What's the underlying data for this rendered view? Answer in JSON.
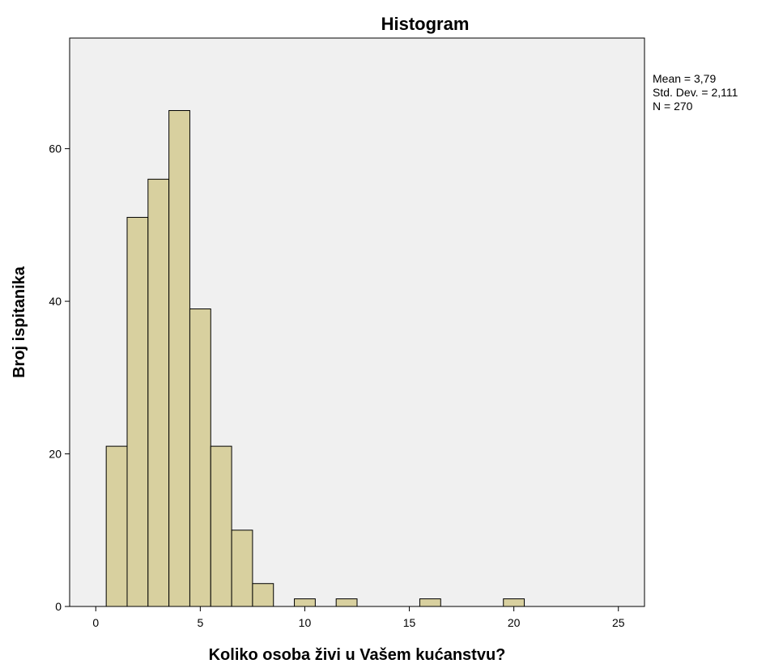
{
  "chart_data": {
    "type": "bar",
    "title": "Histogram",
    "xlabel": "Koliko osoba živi u Vašem kućanstvu?",
    "ylabel": "Broj ispitanika",
    "xlim": [
      -1.25,
      26.25
    ],
    "ylim": [
      0,
      74.5
    ],
    "x_ticks": [
      {
        "value": 0,
        "label": "0"
      },
      {
        "value": 5,
        "label": "5"
      },
      {
        "value": 10,
        "label": "10"
      },
      {
        "value": 15,
        "label": "15"
      },
      {
        "value": 20,
        "label": "20"
      },
      {
        "value": 25,
        "label": "25"
      }
    ],
    "y_ticks": [
      {
        "value": 0,
        "label": "0"
      },
      {
        "value": 20,
        "label": "20"
      },
      {
        "value": 40,
        "label": "40"
      },
      {
        "value": 60,
        "label": "60"
      }
    ],
    "bins": [
      {
        "x0": 0.5,
        "x1": 1.5,
        "count": 21
      },
      {
        "x0": 1.5,
        "x1": 2.5,
        "count": 51
      },
      {
        "x0": 2.5,
        "x1": 3.5,
        "count": 56
      },
      {
        "x0": 3.5,
        "x1": 4.5,
        "count": 65
      },
      {
        "x0": 4.5,
        "x1": 5.5,
        "count": 39
      },
      {
        "x0": 5.5,
        "x1": 6.5,
        "count": 21
      },
      {
        "x0": 6.5,
        "x1": 7.5,
        "count": 10
      },
      {
        "x0": 7.5,
        "x1": 8.5,
        "count": 3
      },
      {
        "x0": 9.5,
        "x1": 10.5,
        "count": 1
      },
      {
        "x0": 11.5,
        "x1": 12.5,
        "count": 1
      },
      {
        "x0": 15.5,
        "x1": 16.5,
        "count": 1
      },
      {
        "x0": 19.5,
        "x1": 20.5,
        "count": 1
      }
    ],
    "stats": {
      "mean": "Mean = 3,79",
      "std_dev": "Std. Dev. = 2,111",
      "n": "N = 270"
    },
    "grid": false,
    "legend": "none"
  },
  "colors": {
    "bar_fill": "#d8d09f",
    "bar_stroke": "#000000",
    "plot_background": "#f0f0f0",
    "page_background": "#ffffff",
    "axis": "#000000"
  }
}
